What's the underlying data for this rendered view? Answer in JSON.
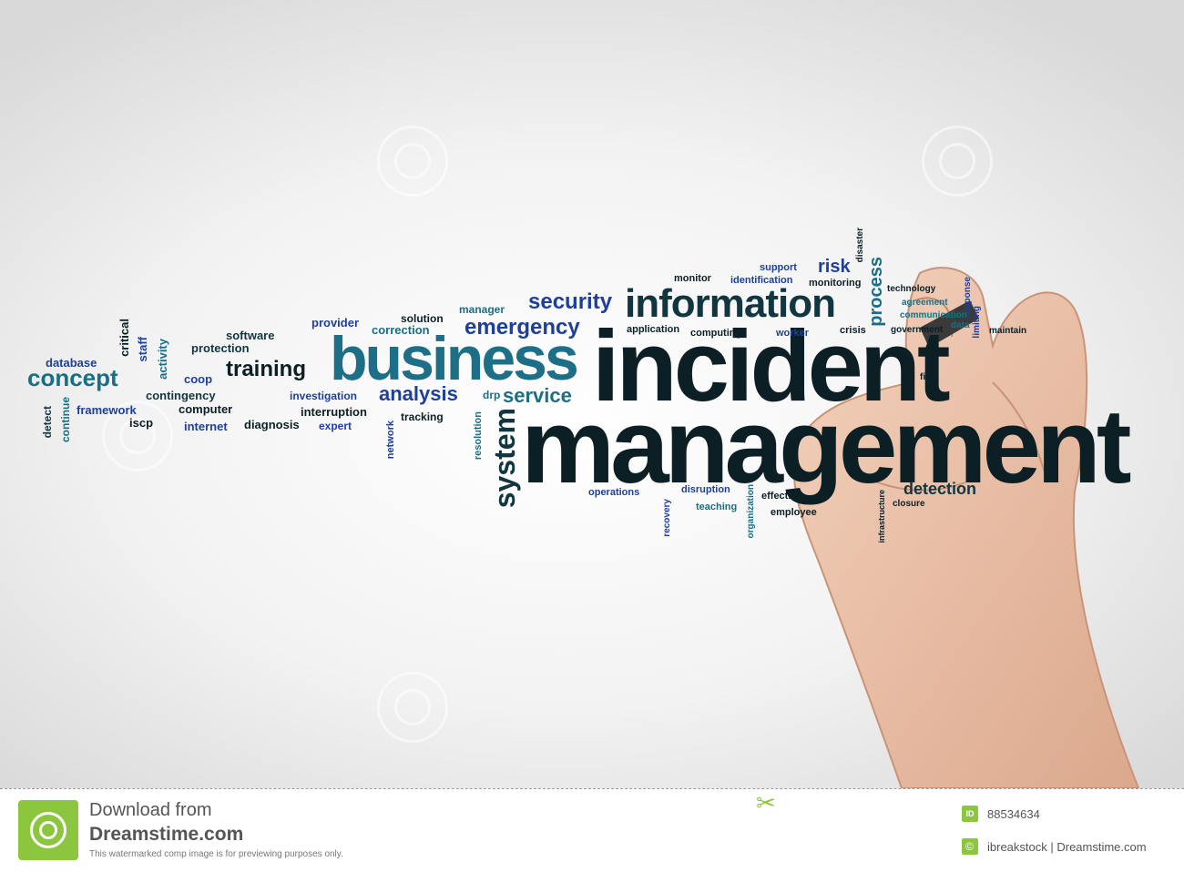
{
  "words": {
    "incident": "incident",
    "management": "management",
    "business": "business",
    "information": "information",
    "security": "security",
    "emergency": "emergency",
    "analysis": "analysis",
    "service": "service",
    "system": "system",
    "training": "training",
    "concept": "concept",
    "database": "database",
    "critical": "critical",
    "staff": "staff",
    "activity": "activity",
    "software": "software",
    "protection": "protection",
    "coop": "coop",
    "contingency": "contingency",
    "framework": "framework",
    "computer": "computer",
    "iscp": "iscp",
    "internet": "internet",
    "diagnosis": "diagnosis",
    "detect": "detect",
    "continue": "continue",
    "provider": "provider",
    "solution": "solution",
    "correction": "correction",
    "manager": "manager",
    "investigation": "investigation",
    "interruption": "interruption",
    "expert": "expert",
    "tracking": "tracking",
    "drp": "drp",
    "network": "network",
    "resolution": "resolution",
    "monitor": "monitor",
    "identification": "identification",
    "support": "support",
    "risk": "risk",
    "monitoring": "monitoring",
    "disaster": "disaster",
    "process": "process",
    "technology": "technology",
    "agreement": "agreement",
    "response": "response",
    "communication": "communication",
    "application": "application",
    "computing": "computing",
    "worker": "worker",
    "crisis": "crisis",
    "government": "government",
    "data": "data",
    "limiting": "limiting",
    "maintain": "maintain",
    "fix": "fix",
    "operations": "operations",
    "disruption": "disruption",
    "teaching": "teaching",
    "recovery": "recovery",
    "organization": "organization",
    "effective": "effective",
    "employee": "employee",
    "infrastructure": "infrastructure",
    "closure": "closure",
    "detection": "detection"
  },
  "footer": {
    "download_from": "Download from",
    "site": "Dreamstime.com",
    "disclaimer": "This watermarked comp image is for previewing purposes only.",
    "id_label": "ID",
    "id_value": "88534634",
    "credit": "ibreakstock | Dreamstime.com"
  },
  "colors": {
    "dark": "#0b1f24",
    "teal": "#1a6f84",
    "blue": "#1e3f9a",
    "brand_green": "#8cc63f"
  }
}
